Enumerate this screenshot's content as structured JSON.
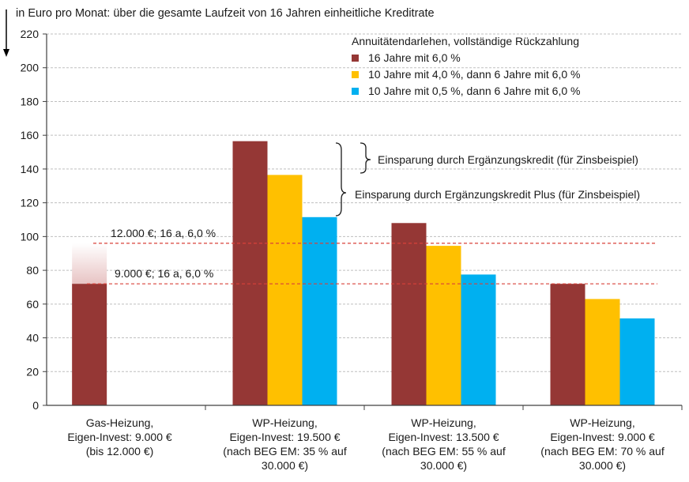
{
  "chart_data": {
    "type": "bar",
    "title": "in Euro pro Monat: über die gesamte Laufzeit von 16 Jahren einheitliche Kreditrate",
    "ylim": [
      0,
      220
    ],
    "yticks": [
      "0",
      "20",
      "40",
      "60",
      "80",
      "100",
      "120",
      "140",
      "160",
      "180",
      "200",
      "220"
    ],
    "grid": "horizontal dashed",
    "categories": [
      [
        "Gas-Heizung,",
        "Eigen-Invest: 9.000 €",
        "(bis 12.000 €)"
      ],
      [
        "WP-Heizung,",
        "Eigen-Invest: 19.500 €",
        "(nach BEG EM: 35 % auf",
        "30.000 €)"
      ],
      [
        "WP-Heizung,",
        "Eigen-Invest: 13.500 €",
        "(nach BEG EM: 55 % auf",
        "30.000 €)"
      ],
      [
        "WP-Heizung,",
        "Eigen-Invest: 9.000 €",
        "(nach BEG EM: 70 % auf",
        "30.000 €)"
      ]
    ],
    "legend_title": "Annuitätendarlehen, vollständige Rückzahlung",
    "legend_position": "top-right",
    "series": [
      {
        "name": "16 Jahre mit 6,0 %",
        "color": "#953735",
        "values": [
          72,
          156.5,
          108,
          72
        ]
      },
      {
        "name": "10 Jahre mit 4,0 %, dann 6 Jahre mit 6,0 %",
        "color": "#FFC000",
        "values": [
          null,
          136.5,
          94.5,
          63
        ]
      },
      {
        "name": "10 Jahre mit 0,5 %, dann 6 Jahre mit 6,0 %",
        "color": "#00B0F0",
        "values": [
          null,
          111.5,
          77.5,
          51.5
        ]
      }
    ],
    "gas_range_top": 96,
    "gas_range_color": "#e8c4c4",
    "reference_lines": [
      {
        "label": "12.000 €; 16 a, 6,0 %",
        "value": 96,
        "color": "#d9413a"
      },
      {
        "label": "9.000 €; 16 a, 6,0 %",
        "value": 72,
        "color": "#d9413a"
      }
    ],
    "annotations": [
      "Einsparung durch Ergänzungskredit (für Zinsbeispiel)",
      "Einsparung durch Ergänzungskredit Plus (für Zinsbeispiel)"
    ]
  }
}
